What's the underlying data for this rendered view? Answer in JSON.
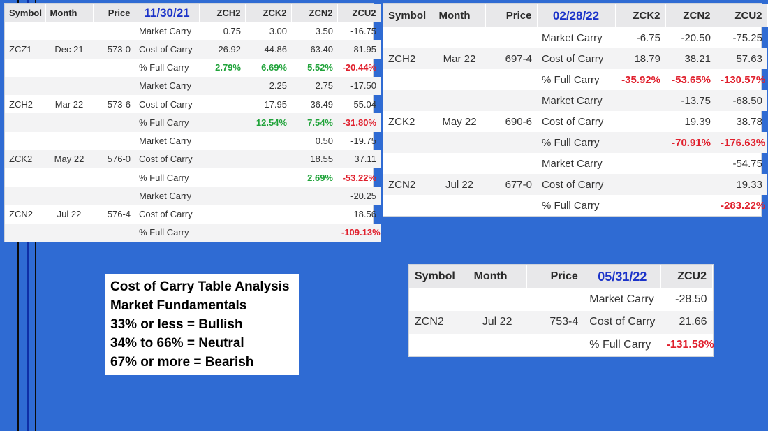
{
  "colors": {
    "background": "#2f6bd3",
    "date": "#1b33c9",
    "positive": "#20a33a",
    "negative": "#e0202d"
  },
  "headers": {
    "symbol": "Symbol",
    "month": "Month",
    "price": "Price"
  },
  "table1": {
    "date": "11/30/21",
    "cols": [
      "ZCH2",
      "ZCK2",
      "ZCN2",
      "ZCU2"
    ],
    "rows": [
      {
        "symbol": "",
        "month": "",
        "price": "",
        "label": "Market Carry",
        "values": [
          "0.75",
          "3.00",
          "3.50",
          "-16.75"
        ]
      },
      {
        "symbol": "ZCZ1",
        "month": "Dec 21",
        "price": "573-0",
        "label": "Cost of Carry",
        "values": [
          "26.92",
          "44.86",
          "63.40",
          "81.95"
        ]
      },
      {
        "symbol": "",
        "month": "",
        "price": "",
        "label": "% Full Carry",
        "values": [
          "2.79%",
          "6.69%",
          "5.52%",
          "-20.44%"
        ]
      },
      {
        "symbol": "",
        "month": "",
        "price": "",
        "label": "Market Carry",
        "values": [
          "",
          "2.25",
          "2.75",
          "-17.50"
        ]
      },
      {
        "symbol": "ZCH2",
        "month": "Mar 22",
        "price": "573-6",
        "label": "Cost of Carry",
        "values": [
          "",
          "17.95",
          "36.49",
          "55.04"
        ]
      },
      {
        "symbol": "",
        "month": "",
        "price": "",
        "label": "% Full Carry",
        "values": [
          "",
          "12.54%",
          "7.54%",
          "-31.80%"
        ]
      },
      {
        "symbol": "",
        "month": "",
        "price": "",
        "label": "Market Carry",
        "values": [
          "",
          "",
          "0.50",
          "-19.75"
        ]
      },
      {
        "symbol": "ZCK2",
        "month": "May 22",
        "price": "576-0",
        "label": "Cost of Carry",
        "values": [
          "",
          "",
          "18.55",
          "37.11"
        ]
      },
      {
        "symbol": "",
        "month": "",
        "price": "",
        "label": "% Full Carry",
        "values": [
          "",
          "",
          "2.69%",
          "-53.22%"
        ]
      },
      {
        "symbol": "",
        "month": "",
        "price": "",
        "label": "Market Carry",
        "values": [
          "",
          "",
          "",
          "-20.25"
        ]
      },
      {
        "symbol": "ZCN2",
        "month": "Jul 22",
        "price": "576-4",
        "label": "Cost of Carry",
        "values": [
          "",
          "",
          "",
          "18.56"
        ]
      },
      {
        "symbol": "",
        "month": "",
        "price": "",
        "label": "% Full Carry",
        "values": [
          "",
          "",
          "",
          "-109.13%"
        ]
      }
    ]
  },
  "table2": {
    "date": "02/28/22",
    "cols": [
      "ZCK2",
      "ZCN2",
      "ZCU2"
    ],
    "rows": [
      {
        "symbol": "",
        "month": "",
        "price": "",
        "label": "Market Carry",
        "values": [
          "-6.75",
          "-20.50",
          "-75.25"
        ]
      },
      {
        "symbol": "ZCH2",
        "month": "Mar 22",
        "price": "697-4",
        "label": "Cost of Carry",
        "values": [
          "18.79",
          "38.21",
          "57.63"
        ]
      },
      {
        "symbol": "",
        "month": "",
        "price": "",
        "label": "% Full Carry",
        "values": [
          "-35.92%",
          "-53.65%",
          "-130.57%"
        ]
      },
      {
        "symbol": "",
        "month": "",
        "price": "",
        "label": "Market Carry",
        "values": [
          "",
          "-13.75",
          "-68.50"
        ]
      },
      {
        "symbol": "ZCK2",
        "month": "May 22",
        "price": "690-6",
        "label": "Cost of Carry",
        "values": [
          "",
          "19.39",
          "38.78"
        ]
      },
      {
        "symbol": "",
        "month": "",
        "price": "",
        "label": "% Full Carry",
        "values": [
          "",
          "-70.91%",
          "-176.63%"
        ]
      },
      {
        "symbol": "",
        "month": "",
        "price": "",
        "label": "Market Carry",
        "values": [
          "",
          "",
          "-54.75"
        ]
      },
      {
        "symbol": "ZCN2",
        "month": "Jul 22",
        "price": "677-0",
        "label": "Cost of Carry",
        "values": [
          "",
          "",
          "19.33"
        ]
      },
      {
        "symbol": "",
        "month": "",
        "price": "",
        "label": "% Full Carry",
        "values": [
          "",
          "",
          "-283.22%"
        ]
      }
    ]
  },
  "table3": {
    "date": "05/31/22",
    "cols": [
      "ZCU2"
    ],
    "rows": [
      {
        "symbol": "",
        "month": "",
        "price": "",
        "label": "Market Carry",
        "values": [
          "-28.50"
        ]
      },
      {
        "symbol": "ZCN2",
        "month": "Jul 22",
        "price": "753-4",
        "label": "Cost of Carry",
        "values": [
          "21.66"
        ]
      },
      {
        "symbol": "",
        "month": "",
        "price": "",
        "label": "% Full Carry",
        "values": [
          "-131.58%"
        ]
      }
    ]
  },
  "legend": {
    "lines": [
      "Cost of Carry Table Analysis",
      "Market Fundamentals",
      "33% or less = Bullish",
      "34% to 66% = Neutral",
      "67% or more = Bearish"
    ]
  }
}
